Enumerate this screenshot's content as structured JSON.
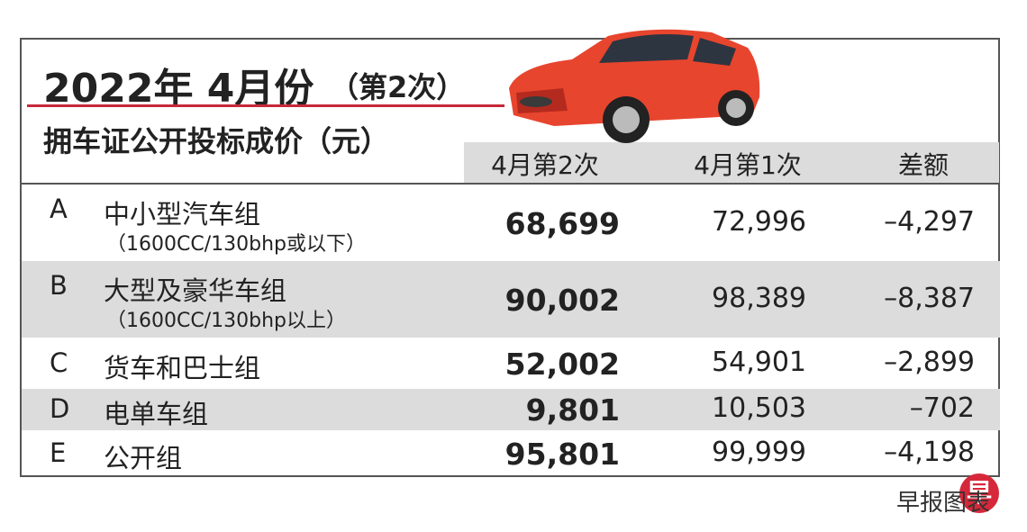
{
  "header": {
    "title": "2022年 4月份",
    "title_suffix": "（第2次）",
    "subtitle": "拥车证公开投标成价（元）"
  },
  "table": {
    "columns": [
      "4月第2次",
      "4月第1次",
      "差额"
    ],
    "rows": [
      {
        "code": "A",
        "name": "中小型汽车组",
        "note": "（1600CC/130bhp或以下）",
        "values": [
          "68,699",
          "72,996",
          "–4,297"
        ]
      },
      {
        "code": "B",
        "name": "大型及豪华车组",
        "note": "（1600CC/130bhp以上）",
        "values": [
          "90,002",
          "98,389",
          "–8,387"
        ]
      },
      {
        "code": "C",
        "name": "货车和巴士组",
        "values": [
          "52,002",
          "54,901",
          "–2,899"
        ]
      },
      {
        "code": "D",
        "name": "电单车组",
        "values": [
          "9,801",
          "10,503",
          "–702"
        ]
      },
      {
        "code": "E",
        "name": "公开组",
        "values": [
          "95,801",
          "99,999",
          "–4,198"
        ]
      }
    ]
  },
  "footer": {
    "logo": "早",
    "source": "早报图表"
  }
}
